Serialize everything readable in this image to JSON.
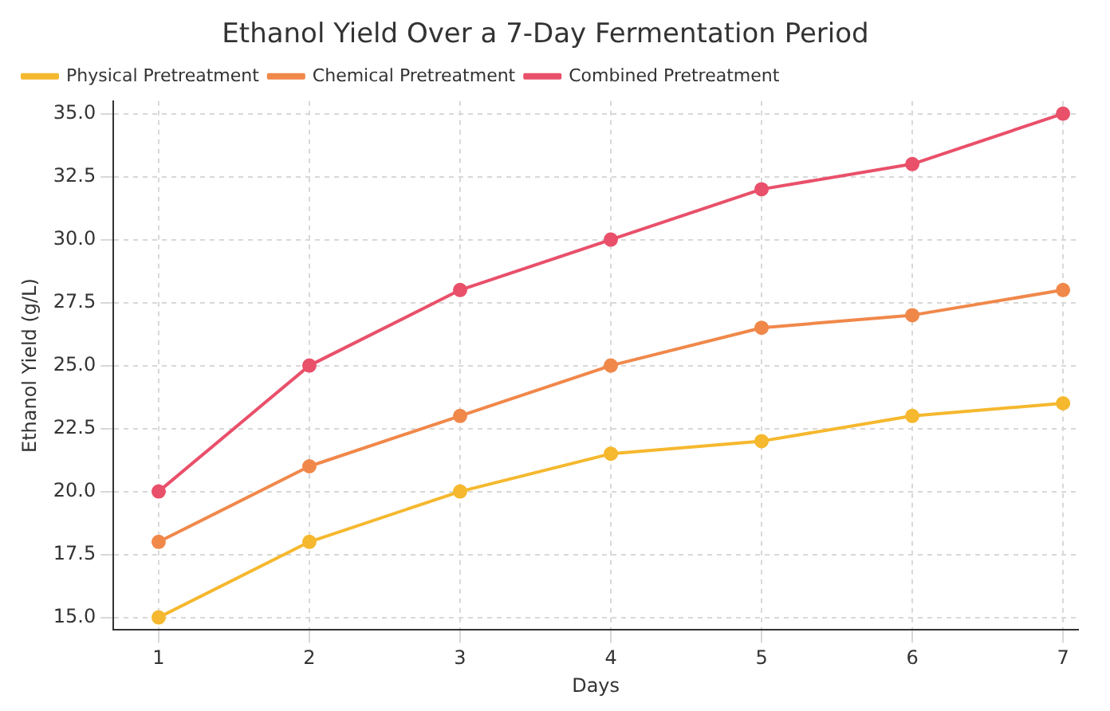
{
  "chart_data": {
    "type": "line",
    "title": "Ethanol Yield Over a 7-Day Fermentation Period",
    "xlabel": "Days",
    "ylabel": "Ethanol Yield (g/L)",
    "x": [
      1,
      2,
      3,
      4,
      5,
      6,
      7
    ],
    "series": [
      {
        "name": "Physical Pretreatment",
        "color": "#f5b82e",
        "values": [
          15,
          18,
          20,
          21.5,
          22,
          23,
          23.5
        ]
      },
      {
        "name": "Chemical Pretreatment",
        "color": "#f0884a",
        "values": [
          18,
          21,
          23,
          25,
          26.5,
          27,
          28
        ]
      },
      {
        "name": "Combined Pretreatment",
        "color": "#e9506a",
        "values": [
          20,
          25,
          28,
          30,
          32,
          33,
          35
        ]
      }
    ],
    "xlim": [
      0.7,
      7.1
    ],
    "xticks": [
      1,
      2,
      3,
      4,
      5,
      6,
      7
    ],
    "ylim": [
      14.5,
      35.5
    ],
    "yticks": [
      {
        "value": 15,
        "label": "15.0"
      },
      {
        "value": 17.5,
        "label": "17.5"
      },
      {
        "value": 20,
        "label": "20.0"
      },
      {
        "value": 22.5,
        "label": "22.5"
      },
      {
        "value": 25,
        "label": "25.0"
      },
      {
        "value": 27.5,
        "label": "27.5"
      },
      {
        "value": 30,
        "label": "30.0"
      },
      {
        "value": 32.5,
        "label": "32.5"
      },
      {
        "value": 35,
        "label": "35.0"
      }
    ],
    "grid": true,
    "legend": "top left",
    "marker": "circle",
    "line_style": "solid"
  }
}
